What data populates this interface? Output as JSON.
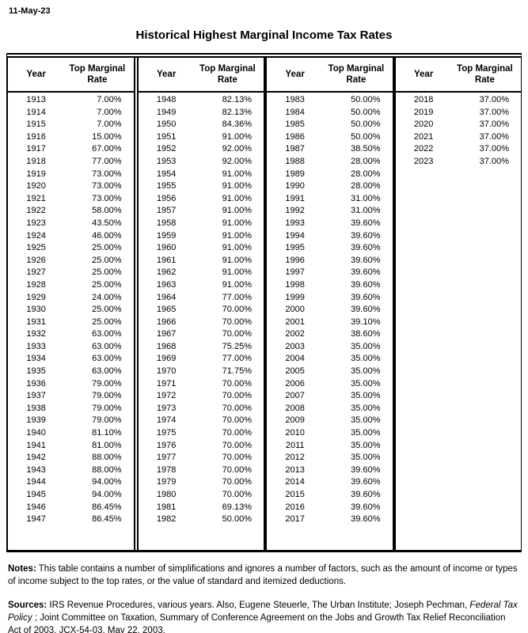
{
  "date": "11-May-23",
  "title": "Historical Highest Marginal Income Tax Rates",
  "table": {
    "header": {
      "year": "Year",
      "rate": "Top Marginal Rate"
    },
    "columns": [
      {
        "rows": [
          {
            "year": "1913",
            "rate": "7.00%"
          },
          {
            "year": "1914",
            "rate": "7.00%"
          },
          {
            "year": "1915",
            "rate": "7.00%"
          },
          {
            "year": "1916",
            "rate": "15.00%"
          },
          {
            "year": "1917",
            "rate": "67.00%"
          },
          {
            "year": "1918",
            "rate": "77.00%"
          },
          {
            "year": "1919",
            "rate": "73.00%"
          },
          {
            "year": "1920",
            "rate": "73.00%"
          },
          {
            "year": "1921",
            "rate": "73.00%"
          },
          {
            "year": "1922",
            "rate": "58.00%"
          },
          {
            "year": "1923",
            "rate": "43.50%"
          },
          {
            "year": "1924",
            "rate": "46.00%"
          },
          {
            "year": "1925",
            "rate": "25.00%"
          },
          {
            "year": "1926",
            "rate": "25.00%"
          },
          {
            "year": "1927",
            "rate": "25.00%"
          },
          {
            "year": "1928",
            "rate": "25.00%"
          },
          {
            "year": "1929",
            "rate": "24.00%"
          },
          {
            "year": "1930",
            "rate": "25.00%"
          },
          {
            "year": "1931",
            "rate": "25.00%"
          },
          {
            "year": "1932",
            "rate": "63.00%"
          },
          {
            "year": "1933",
            "rate": "63.00%"
          },
          {
            "year": "1934",
            "rate": "63.00%"
          },
          {
            "year": "1935",
            "rate": "63.00%"
          },
          {
            "year": "1936",
            "rate": "79.00%"
          },
          {
            "year": "1937",
            "rate": "79.00%"
          },
          {
            "year": "1938",
            "rate": "79.00%"
          },
          {
            "year": "1939",
            "rate": "79.00%"
          },
          {
            "year": "1940",
            "rate": "81.10%"
          },
          {
            "year": "1941",
            "rate": "81.00%"
          },
          {
            "year": "1942",
            "rate": "88.00%"
          },
          {
            "year": "1943",
            "rate": "88.00%"
          },
          {
            "year": "1944",
            "rate": "94.00%"
          },
          {
            "year": "1945",
            "rate": "94.00%"
          },
          {
            "year": "1946",
            "rate": "86.45%"
          },
          {
            "year": "1947",
            "rate": "86.45%"
          }
        ]
      },
      {
        "rows": [
          {
            "year": "1948",
            "rate": "82.13%"
          },
          {
            "year": "1949",
            "rate": "82.13%"
          },
          {
            "year": "1950",
            "rate": "84.36%"
          },
          {
            "year": "1951",
            "rate": "91.00%"
          },
          {
            "year": "1952",
            "rate": "92.00%"
          },
          {
            "year": "1953",
            "rate": "92.00%"
          },
          {
            "year": "1954",
            "rate": "91.00%"
          },
          {
            "year": "1955",
            "rate": "91.00%"
          },
          {
            "year": "1956",
            "rate": "91.00%"
          },
          {
            "year": "1957",
            "rate": "91.00%"
          },
          {
            "year": "1958",
            "rate": "91.00%"
          },
          {
            "year": "1959",
            "rate": "91.00%"
          },
          {
            "year": "1960",
            "rate": "91.00%"
          },
          {
            "year": "1961",
            "rate": "91.00%"
          },
          {
            "year": "1962",
            "rate": "91.00%"
          },
          {
            "year": "1963",
            "rate": "91.00%"
          },
          {
            "year": "1964",
            "rate": "77.00%"
          },
          {
            "year": "1965",
            "rate": "70.00%"
          },
          {
            "year": "1966",
            "rate": "70.00%"
          },
          {
            "year": "1967",
            "rate": "70.00%"
          },
          {
            "year": "1968",
            "rate": "75.25%"
          },
          {
            "year": "1969",
            "rate": "77.00%"
          },
          {
            "year": "1970",
            "rate": "71.75%"
          },
          {
            "year": "1971",
            "rate": "70.00%"
          },
          {
            "year": "1972",
            "rate": "70.00%"
          },
          {
            "year": "1973",
            "rate": "70.00%"
          },
          {
            "year": "1974",
            "rate": "70.00%"
          },
          {
            "year": "1975",
            "rate": "70.00%"
          },
          {
            "year": "1976",
            "rate": "70.00%"
          },
          {
            "year": "1977",
            "rate": "70.00%"
          },
          {
            "year": "1978",
            "rate": "70.00%"
          },
          {
            "year": "1979",
            "rate": "70.00%"
          },
          {
            "year": "1980",
            "rate": "70.00%"
          },
          {
            "year": "1981",
            "rate": "69.13%"
          },
          {
            "year": "1982",
            "rate": "50.00%"
          }
        ]
      },
      {
        "rows": [
          {
            "year": "1983",
            "rate": "50.00%"
          },
          {
            "year": "1984",
            "rate": "50.00%"
          },
          {
            "year": "1985",
            "rate": "50.00%"
          },
          {
            "year": "1986",
            "rate": "50.00%"
          },
          {
            "year": "1987",
            "rate": "38.50%"
          },
          {
            "year": "1988",
            "rate": "28.00%"
          },
          {
            "year": "1989",
            "rate": "28.00%"
          },
          {
            "year": "1990",
            "rate": "28.00%"
          },
          {
            "year": "1991",
            "rate": "31.00%"
          },
          {
            "year": "1992",
            "rate": "31.00%"
          },
          {
            "year": "1993",
            "rate": "39.60%"
          },
          {
            "year": "1994",
            "rate": "39.60%"
          },
          {
            "year": "1995",
            "rate": "39.60%"
          },
          {
            "year": "1996",
            "rate": "39.60%"
          },
          {
            "year": "1997",
            "rate": "39.60%"
          },
          {
            "year": "1998",
            "rate": "39.60%"
          },
          {
            "year": "1999",
            "rate": "39.60%"
          },
          {
            "year": "2000",
            "rate": "39.60%"
          },
          {
            "year": "2001",
            "rate": "39.10%"
          },
          {
            "year": "2002",
            "rate": "38.60%"
          },
          {
            "year": "2003",
            "rate": "35.00%"
          },
          {
            "year": "2004",
            "rate": "35.00%"
          },
          {
            "year": "2005",
            "rate": "35.00%"
          },
          {
            "year": "2006",
            "rate": "35.00%"
          },
          {
            "year": "2007",
            "rate": "35.00%"
          },
          {
            "year": "2008",
            "rate": "35.00%"
          },
          {
            "year": "2009",
            "rate": "35.00%"
          },
          {
            "year": "2010",
            "rate": "35.00%"
          },
          {
            "year": "2011",
            "rate": "35.00%"
          },
          {
            "year": "2012",
            "rate": "35.00%"
          },
          {
            "year": "2013",
            "rate": "39.60%"
          },
          {
            "year": "2014",
            "rate": "39.60%"
          },
          {
            "year": "2015",
            "rate": "39.60%"
          },
          {
            "year": "2016",
            "rate": "39.60%"
          },
          {
            "year": "2017",
            "rate": "39.60%"
          }
        ]
      },
      {
        "rows": [
          {
            "year": "2018",
            "rate": "37.00%"
          },
          {
            "year": "2019",
            "rate": "37.00%"
          },
          {
            "year": "2020",
            "rate": "37.00%"
          },
          {
            "year": "2021",
            "rate": "37.00%"
          },
          {
            "year": "2022",
            "rate": "37.00%"
          },
          {
            "year": "2023",
            "rate": "37.00%"
          }
        ]
      }
    ]
  },
  "notes": {
    "label": "Notes:",
    "text": "This table contains a number of simplifications and ignores a number of factors, such as the amount of income or types of income subject to the top rates, or the value of standard and itemized deductions."
  },
  "sources": {
    "label": "Sources:",
    "text_before_italic": "IRS Revenue Procedures, various years. Also, Eugene Steuerle, The Urban Institute; Joseph Pechman, ",
    "italic": "Federal Tax Policy",
    "text_after_italic": " ; Joint Committee on Taxation, Summary of Conference Agreement on the Jobs and Growth Tax Relief Reconciliation Act of 2003, JCX-54-03, May 22, 2003."
  }
}
